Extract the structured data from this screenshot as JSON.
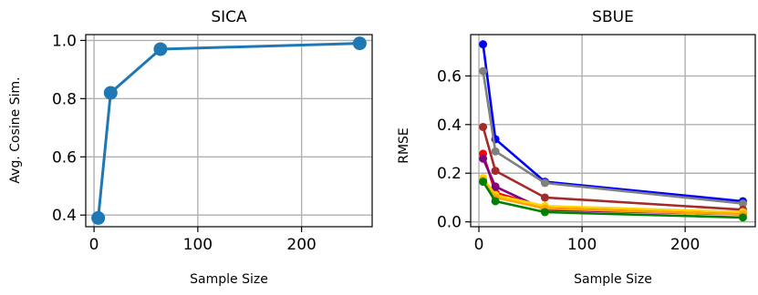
{
  "chart_data": [
    {
      "type": "line",
      "title": "SICA",
      "xlabel": "Sample Size",
      "ylabel": "Avg. Cosine Sim.",
      "xlim": [
        -8,
        268
      ],
      "ylim": [
        0.36,
        1.02
      ],
      "xticks": [
        0,
        100,
        200
      ],
      "xtick_labels": [
        "0",
        "100",
        "200"
      ],
      "yticks": [
        0.4,
        0.6,
        0.8,
        1.0
      ],
      "ytick_labels": [
        "0.4",
        "0.6",
        "0.8",
        "1.0"
      ],
      "grid": true,
      "series": [
        {
          "color": "#1f77b4",
          "x": [
            4,
            16,
            64,
            256
          ],
          "y": [
            0.39,
            0.82,
            0.97,
            0.99
          ]
        }
      ]
    },
    {
      "type": "line",
      "title": "SBUE",
      "xlabel": "Sample Size",
      "ylabel": "RMSE",
      "xlim": [
        -8,
        268
      ],
      "ylim": [
        -0.02,
        0.77
      ],
      "xticks": [
        0,
        100,
        200
      ],
      "xtick_labels": [
        "0",
        "100",
        "200"
      ],
      "yticks": [
        0.0,
        0.2,
        0.4,
        0.6
      ],
      "ytick_labels": [
        "0.0",
        "0.2",
        "0.4",
        "0.6"
      ],
      "grid": true,
      "series": [
        {
          "color": "#0000ff",
          "x": [
            4,
            16,
            64,
            256
          ],
          "y": [
            0.73,
            0.34,
            0.165,
            0.085
          ]
        },
        {
          "color": "#808080",
          "x": [
            4,
            16,
            64,
            256
          ],
          "y": [
            0.62,
            0.29,
            0.16,
            0.075
          ]
        },
        {
          "color": "#a52a2a",
          "x": [
            4,
            16,
            64,
            256
          ],
          "y": [
            0.39,
            0.21,
            0.1,
            0.05
          ]
        },
        {
          "color": "#ff0000",
          "x": [
            4,
            16,
            64,
            256
          ],
          "y": [
            0.28,
            0.12,
            0.06,
            0.035
          ]
        },
        {
          "color": "#800080",
          "x": [
            4,
            16,
            64,
            256
          ],
          "y": [
            0.26,
            0.145,
            0.05,
            0.03
          ]
        },
        {
          "color": "#ffd700",
          "x": [
            4,
            16,
            64,
            256
          ],
          "y": [
            0.18,
            0.11,
            0.065,
            0.04
          ]
        },
        {
          "color": "#ffa500",
          "x": [
            4,
            16,
            64,
            256
          ],
          "y": [
            0.17,
            0.1,
            0.055,
            0.03
          ]
        },
        {
          "color": "#008000",
          "x": [
            4,
            16,
            64,
            256
          ],
          "y": [
            0.165,
            0.085,
            0.04,
            0.018
          ]
        }
      ]
    }
  ]
}
